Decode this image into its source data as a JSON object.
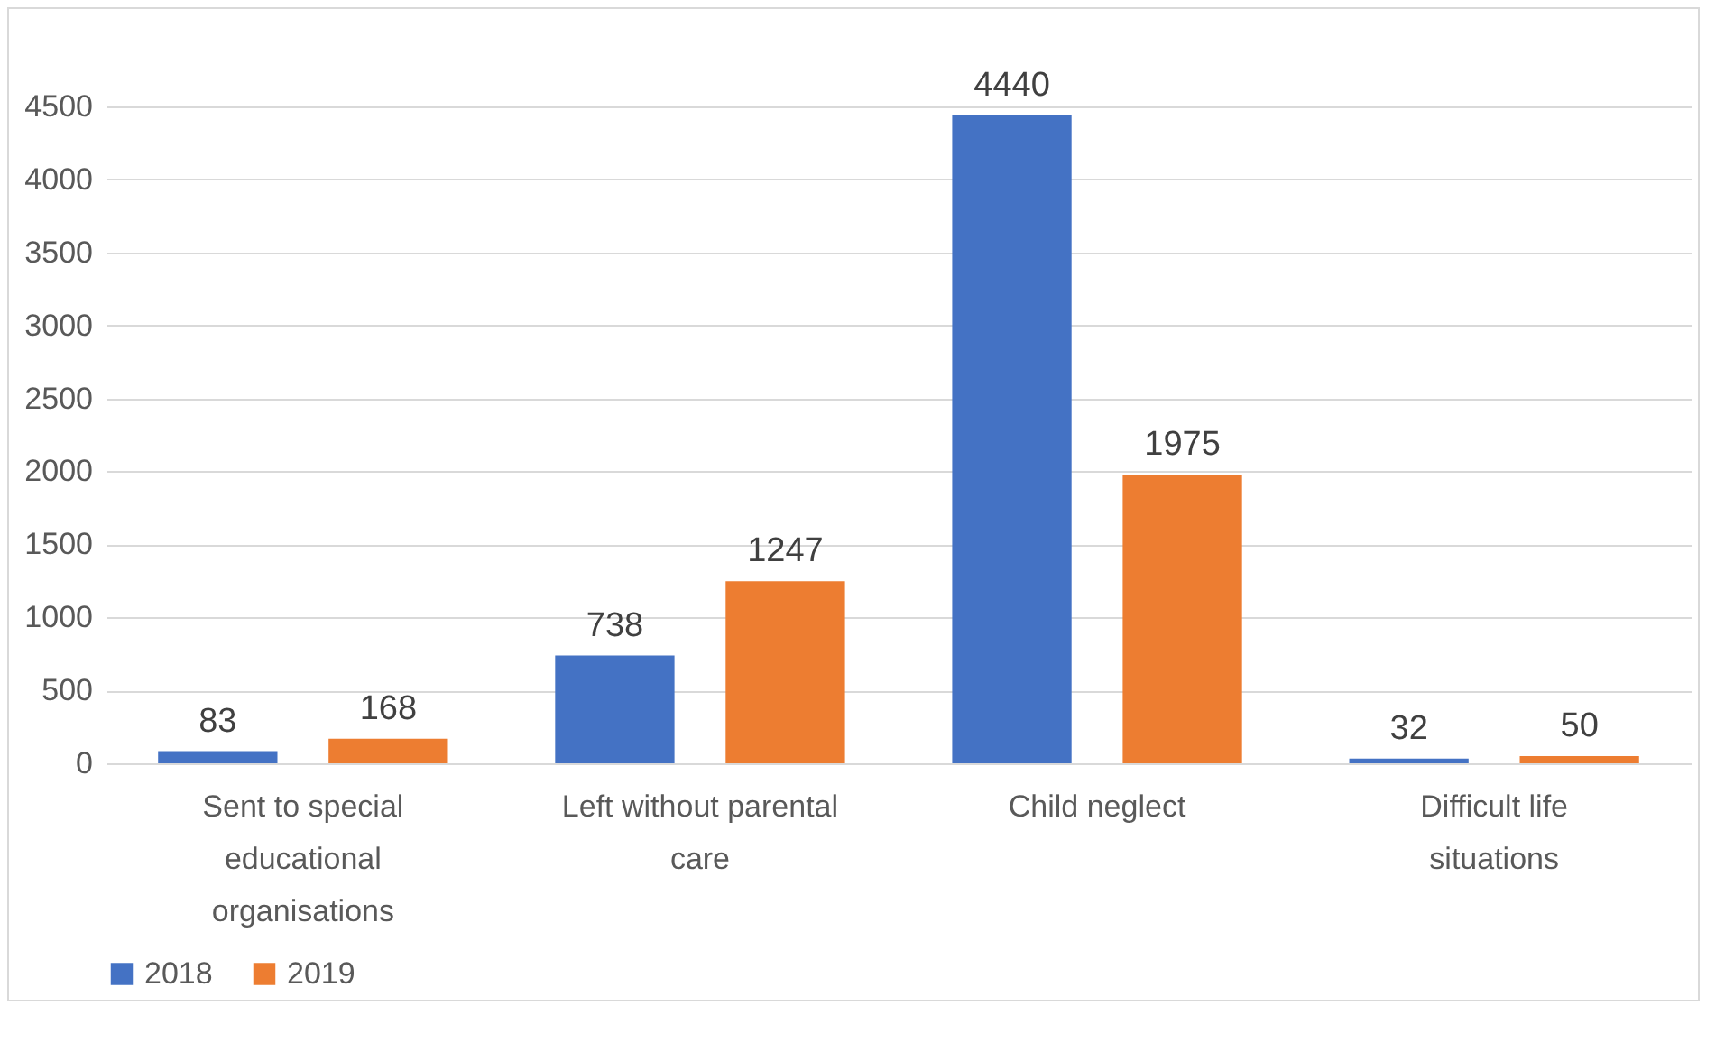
{
  "chart_data": {
    "type": "bar",
    "categories": [
      "Sent to special educational organisations",
      "Left without parental care",
      "Child neglect",
      "Difficult life situations"
    ],
    "series": [
      {
        "name": "2018",
        "color": "#4472c4",
        "values": [
          83,
          738,
          4440,
          32
        ]
      },
      {
        "name": "2019",
        "color": "#ed7d31",
        "values": [
          168,
          1247,
          1975,
          50
        ]
      }
    ],
    "ylim": [
      0,
      4500
    ],
    "yticks": [
      0,
      500,
      1000,
      1500,
      2000,
      2500,
      3000,
      3500,
      4000,
      4500
    ],
    "grid": "y",
    "legend": "bottom",
    "data_labels": true
  }
}
